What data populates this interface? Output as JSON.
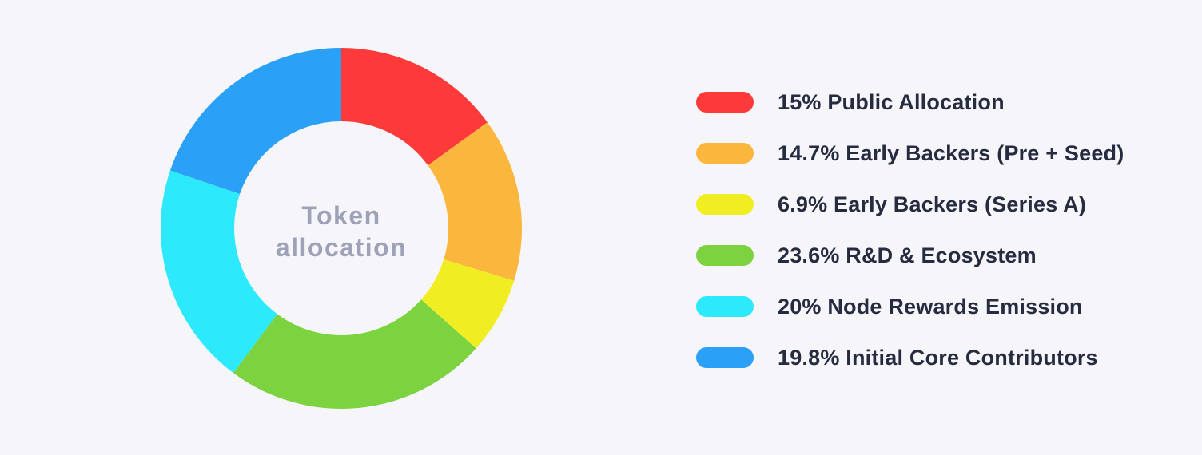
{
  "page": {
    "background_color": "#F6F6FA"
  },
  "chart_data": {
    "type": "pie",
    "variant": "donut",
    "title": "Token allocation",
    "center_label": {
      "line1": "Token",
      "line2": "allocation"
    },
    "center_label_color": "#9EA2B8",
    "legend_position": "right",
    "start_angle_deg": 0,
    "direction": "clockwise",
    "geometry": {
      "outer_radius": 226,
      "inner_radius": 134
    },
    "slices": [
      {
        "label": "Public Allocation",
        "value": 15,
        "display": "15%",
        "color": "#FC3A3A"
      },
      {
        "label": "Early Backers (Pre + Seed)",
        "value": 14.7,
        "display": "14.7%",
        "color": "#FBB73D"
      },
      {
        "label": "Early Backers (Series A)",
        "value": 6.9,
        "display": "6.9%",
        "color": "#F0EE23"
      },
      {
        "label": "R&D & Ecosystem",
        "value": 23.6,
        "display": "23.6%",
        "color": "#7DD33F"
      },
      {
        "label": "Node Rewards Emission",
        "value": 20,
        "display": "20%",
        "color": "#2CE9FB"
      },
      {
        "label": "Initial Core Contributors",
        "value": 19.8,
        "display": "19.8%",
        "color": "#2BA0F7"
      }
    ]
  },
  "legend": {
    "text_color": "#262B40",
    "items": [
      {
        "label": "15% Public Allocation"
      },
      {
        "label": "14.7% Early Backers (Pre + Seed)"
      },
      {
        "label": "6.9% Early Backers (Series A)"
      },
      {
        "label": "23.6% R&D & Ecosystem"
      },
      {
        "label": "20% Node Rewards Emission"
      },
      {
        "label": "19.8% Initial Core Contributors"
      }
    ]
  }
}
